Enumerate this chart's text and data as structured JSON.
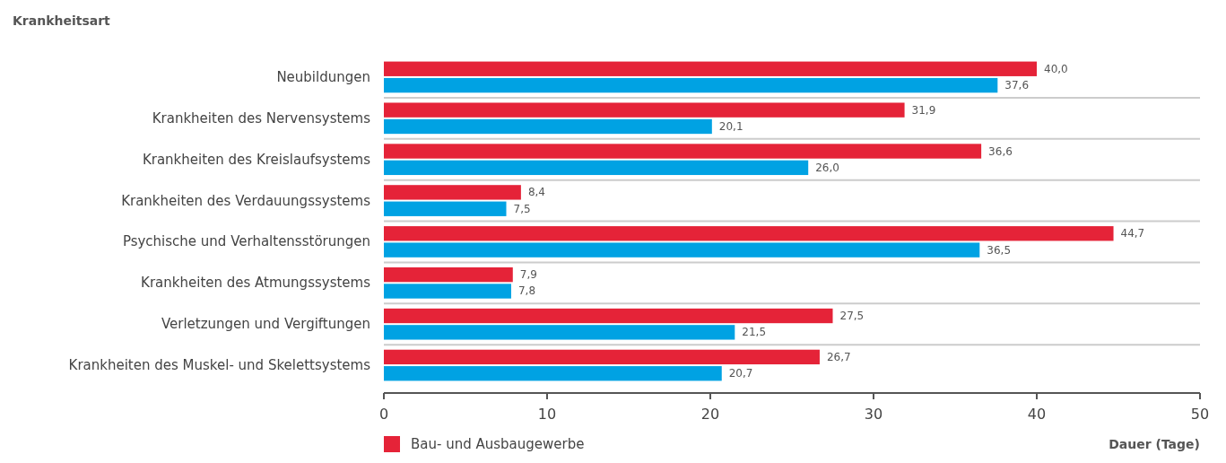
{
  "chart_data": {
    "type": "bar",
    "orientation": "horizontal",
    "ylabel": "Krankheitsart",
    "xlabel": "Dauer (Tage)",
    "categories": [
      "Neubildungen",
      "Krankheiten des Nervensystems",
      "Krankheiten des Kreislaufsystems",
      "Krankheiten des Verdauungssystems",
      "Psychische und Verhaltensstörungen",
      "Krankheiten des Atmungssystems",
      "Verletzungen und Vergiftungen",
      "Krankheiten des Muskel- und Skelettsystems"
    ],
    "series": [
      {
        "name": "Bau- und Ausbaugewerbe",
        "color": "#e52338",
        "values": [
          40.0,
          31.9,
          36.6,
          8.4,
          44.7,
          7.9,
          27.5,
          26.7
        ],
        "value_labels": [
          "40,0",
          "31,9",
          "36,6",
          "8,4",
          "44,7",
          "7,9",
          "27,5",
          "26,7"
        ]
      },
      {
        "color": "#00a2e3",
        "values": [
          37.6,
          20.1,
          26.0,
          7.5,
          36.5,
          7.8,
          21.5,
          20.7
        ],
        "value_labels": [
          "37,6",
          "20,1",
          "26,0",
          "7,5",
          "36,5",
          "7,8",
          "21,5",
          "20,7"
        ]
      }
    ],
    "xlim": [
      0,
      50
    ],
    "xticks": [
      0,
      10,
      20,
      30,
      40,
      50
    ],
    "legend": "bottom left"
  }
}
